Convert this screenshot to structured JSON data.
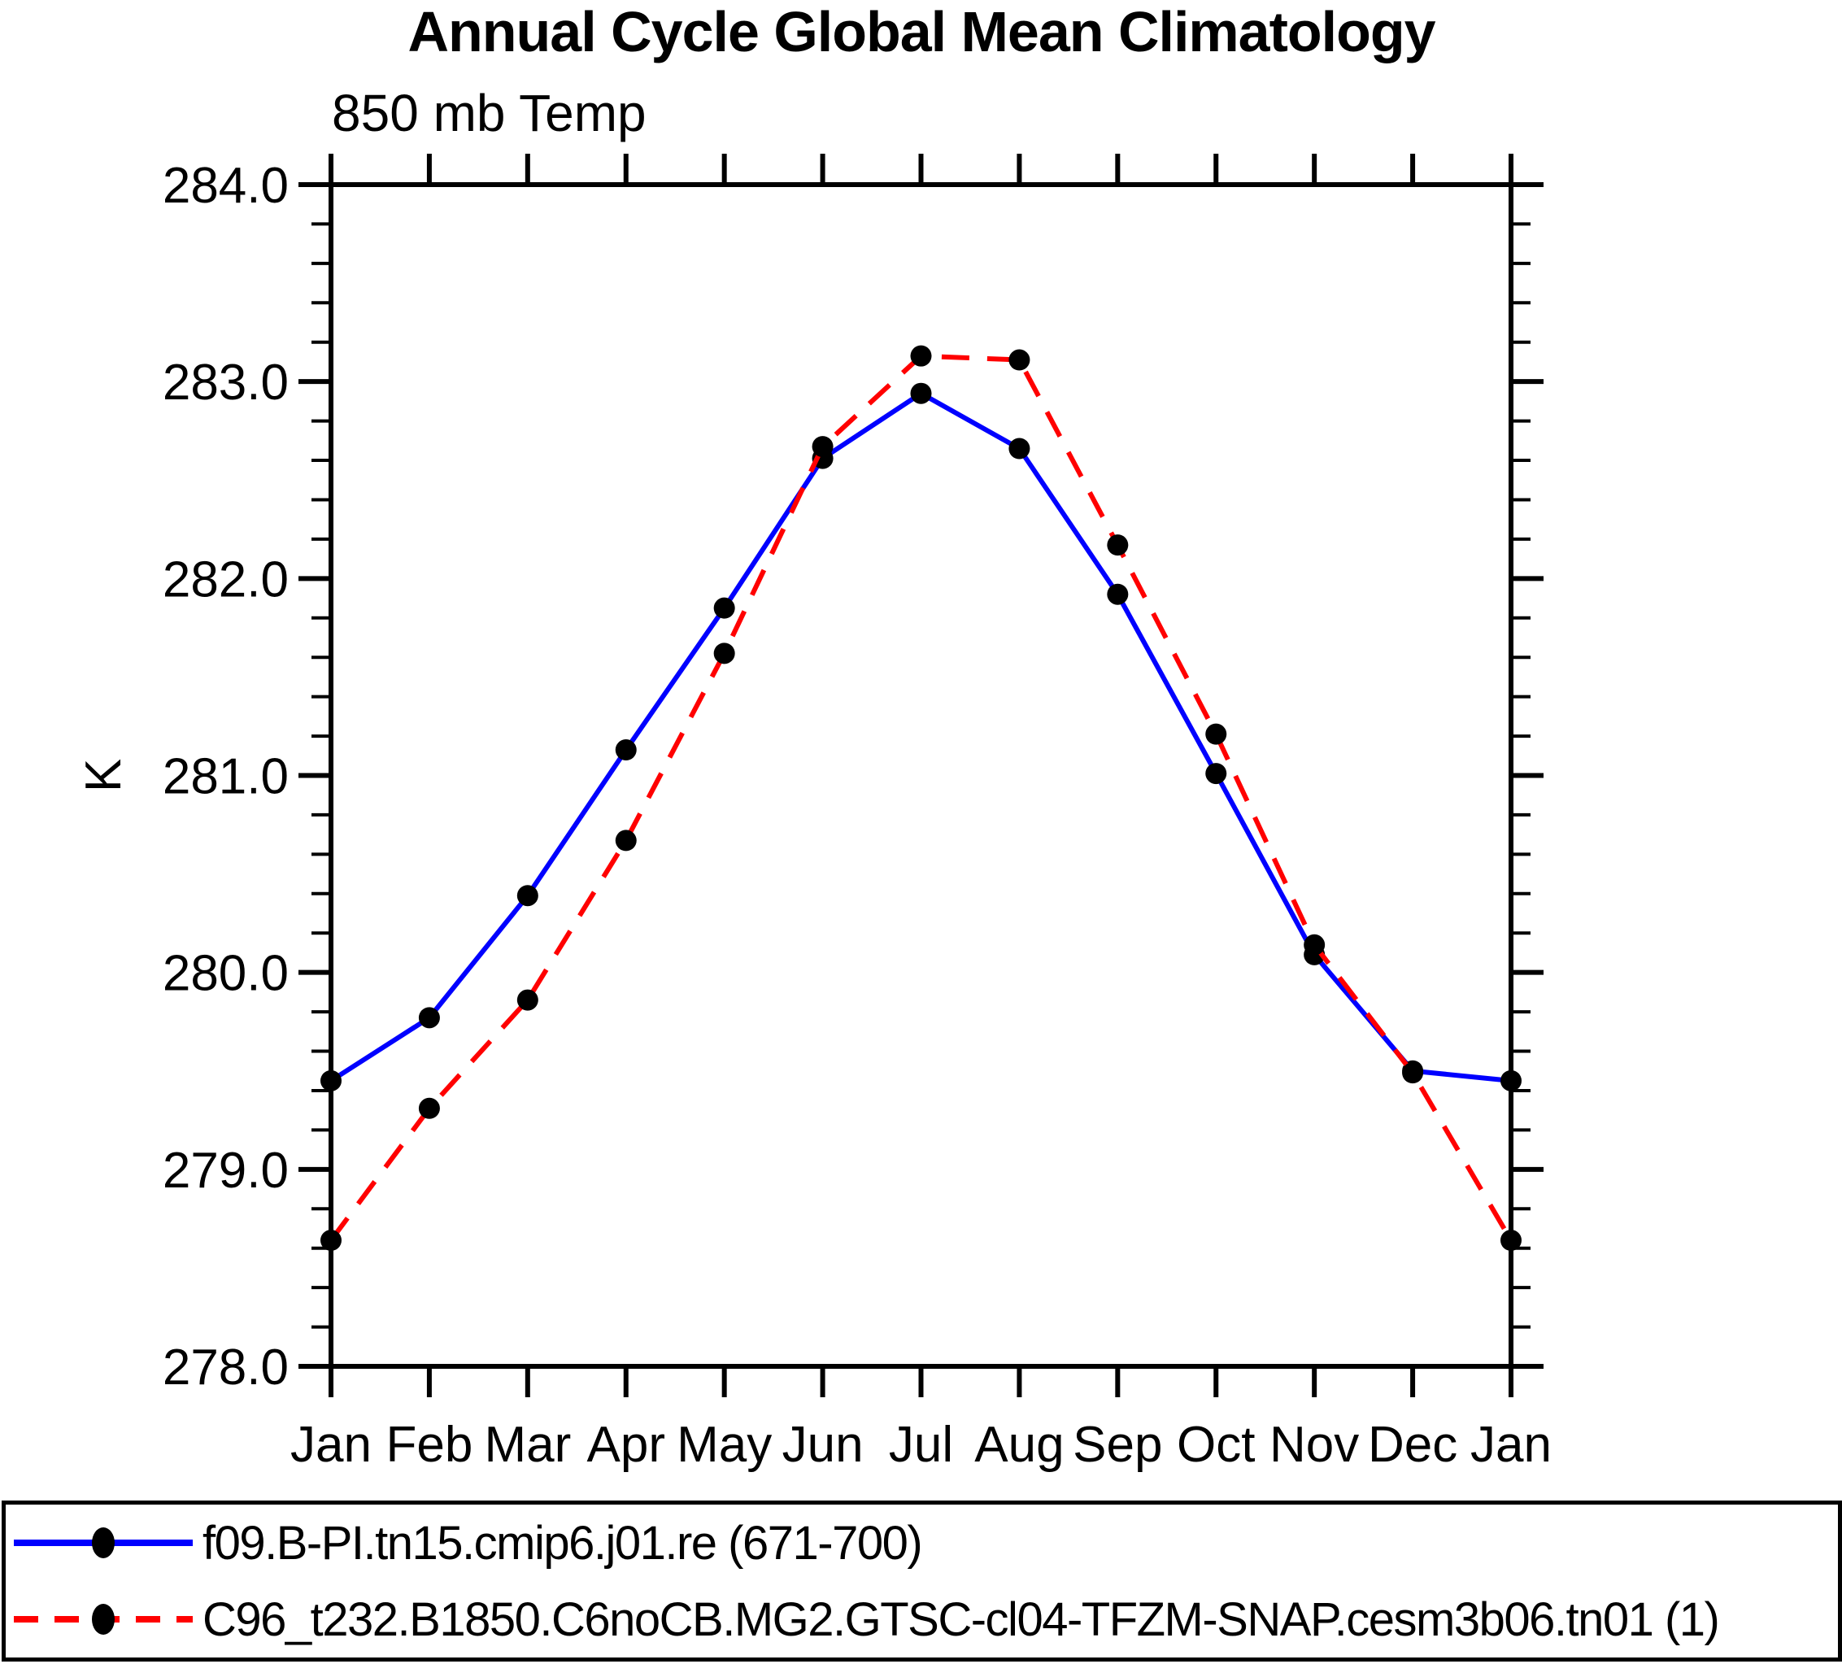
{
  "title": "Annual Cycle Global Mean Climatology",
  "subtitle": "850 mb Temp",
  "chart_data": {
    "type": "line",
    "categories": [
      "Jan",
      "Feb",
      "Mar",
      "Apr",
      "May",
      "Jun",
      "Jul",
      "Aug",
      "Sep",
      "Oct",
      "Nov",
      "Dec",
      "Jan"
    ],
    "xlabel": "",
    "ylabel": "K",
    "ylim": [
      278.0,
      284.0
    ],
    "ytick_labels": [
      "278.0",
      "279.0",
      "280.0",
      "281.0",
      "282.0",
      "283.0",
      "284.0"
    ],
    "ytick_major": [
      278.0,
      279.0,
      280.0,
      281.0,
      282.0,
      283.0,
      284.0
    ],
    "ytick_minor_step": 0.2,
    "grid": false,
    "legend_position": "bottom",
    "frame_color": "#000000",
    "marker_color": "#000000",
    "series": [
      {
        "name": "f09.B-PI.tn15.cmip6.j01.re (671-700)",
        "color": "#0000ff",
        "style": "solid",
        "marker": "circle",
        "values": [
          279.45,
          279.77,
          280.39,
          281.13,
          281.85,
          282.61,
          282.94,
          282.66,
          281.92,
          281.01,
          280.09,
          279.5,
          279.45
        ]
      },
      {
        "name": "C96_t232.B1850.C6noCB.MG2.GTSC-cl04-TFZM-SNAP.cesm3b06.tn01 (1)",
        "color": "#ff0000",
        "style": "dashed",
        "marker": "circle",
        "values": [
          278.64,
          279.31,
          279.86,
          280.67,
          281.62,
          282.67,
          283.13,
          283.11,
          282.17,
          281.21,
          280.14,
          279.49,
          278.64
        ]
      }
    ]
  }
}
